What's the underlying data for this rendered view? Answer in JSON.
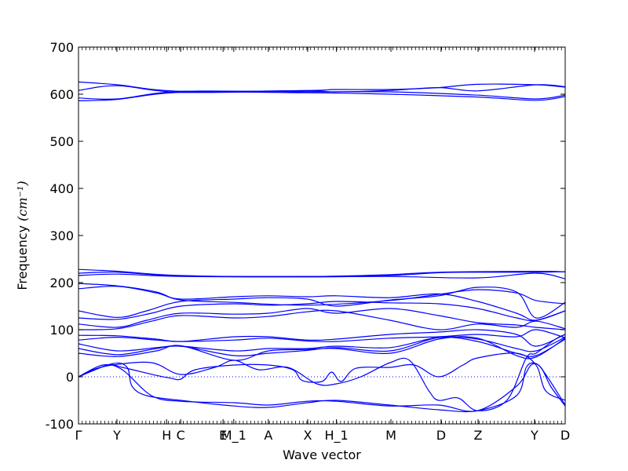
{
  "chart_data": {
    "type": "line",
    "xlabel": "Wave vector",
    "ylabel": "Frequency",
    "ylabel_unit": "(cm⁻¹)",
    "ylim": [
      -100,
      700
    ],
    "yticks": [
      -100,
      0,
      100,
      200,
      300,
      400,
      500,
      600,
      700
    ],
    "grid": false,
    "line_color": "#0000ff",
    "zero_line_color": "#0000ff",
    "x_points": [
      {
        "label": "Γ",
        "x": 0
      },
      {
        "label": "Y",
        "x": 0.79
      },
      {
        "label": "H",
        "x": 1.81
      },
      {
        "label": "C",
        "x": 2.1
      },
      {
        "label": "E",
        "x": 2.97
      },
      {
        "label": "M_1",
        "x": 3.19
      },
      {
        "label": "A",
        "x": 3.9
      },
      {
        "label": "X",
        "x": 4.71
      },
      {
        "label": "H_1",
        "x": 5.3
      },
      {
        "label": "M",
        "x": 6.42
      },
      {
        "label": "D",
        "x": 7.45
      },
      {
        "label": "Z",
        "x": 8.21
      },
      {
        "label": "Y",
        "x": 9.37
      },
      {
        "label": "D",
        "x": 10.0
      }
    ],
    "series": [
      {
        "values": [
          [
            0,
            586
          ],
          [
            0.8,
            589
          ],
          [
            2.1,
            604
          ],
          [
            4.7,
            603
          ],
          [
            6.4,
            600
          ],
          [
            8.2,
            594
          ],
          [
            9.4,
            587
          ],
          [
            10,
            595
          ]
        ]
      },
      {
        "values": [
          [
            0,
            592
          ],
          [
            0.8,
            590
          ],
          [
            2.1,
            606
          ],
          [
            4.7,
            605
          ],
          [
            6.4,
            605
          ],
          [
            8.2,
            598
          ],
          [
            9.4,
            590
          ],
          [
            10,
            598
          ]
        ]
      },
      {
        "values": [
          [
            0,
            608
          ],
          [
            0.8,
            618
          ],
          [
            2.1,
            604
          ],
          [
            4.7,
            607
          ],
          [
            5.3,
            605
          ],
          [
            6.4,
            608
          ],
          [
            7.4,
            614
          ],
          [
            8.2,
            607
          ],
          [
            9.4,
            620
          ],
          [
            10,
            616
          ]
        ]
      },
      {
        "values": [
          [
            0,
            626
          ],
          [
            0.8,
            620
          ],
          [
            2.1,
            606
          ],
          [
            4.7,
            608
          ],
          [
            5.3,
            610
          ],
          [
            6.4,
            610
          ],
          [
            7.4,
            614
          ],
          [
            8.2,
            621
          ],
          [
            9.4,
            620
          ],
          [
            10,
            615
          ]
        ]
      },
      {
        "values": [
          [
            0,
            215
          ],
          [
            0.8,
            218
          ],
          [
            2.1,
            213
          ],
          [
            4.7,
            212
          ],
          [
            6.4,
            213
          ],
          [
            8.2,
            210
          ],
          [
            9.4,
            220
          ],
          [
            10,
            208
          ]
        ]
      },
      {
        "values": [
          [
            0,
            220
          ],
          [
            0.8,
            222
          ],
          [
            2.1,
            214
          ],
          [
            4.7,
            213
          ],
          [
            6.4,
            215
          ],
          [
            7.4,
            221
          ],
          [
            8.2,
            222
          ],
          [
            9.4,
            222
          ],
          [
            10,
            223
          ]
        ]
      },
      {
        "values": [
          [
            0,
            228
          ],
          [
            0.8,
            224
          ],
          [
            2.1,
            215
          ],
          [
            4.7,
            213
          ],
          [
            6.4,
            217
          ],
          [
            7.4,
            222
          ],
          [
            9.4,
            224
          ],
          [
            10,
            223
          ]
        ]
      },
      {
        "values": [
          [
            0,
            198
          ],
          [
            0.8,
            193
          ],
          [
            1.6,
            180
          ],
          [
            2.1,
            163
          ],
          [
            3.2,
            158
          ],
          [
            4.7,
            152
          ],
          [
            6.4,
            162
          ],
          [
            7.4,
            175
          ],
          [
            8.2,
            185
          ],
          [
            9.0,
            178
          ],
          [
            9.4,
            162
          ],
          [
            10,
            155
          ]
        ]
      },
      {
        "values": [
          [
            0,
            187
          ],
          [
            0.8,
            192
          ],
          [
            1.6,
            178
          ],
          [
            2.1,
            165
          ],
          [
            3.2,
            170
          ],
          [
            3.9,
            172
          ],
          [
            4.7,
            170
          ],
          [
            5.3,
            172
          ],
          [
            6.4,
            168
          ],
          [
            7.4,
            176
          ],
          [
            8.2,
            160
          ],
          [
            9.0,
            135
          ],
          [
            9.4,
            120
          ],
          [
            10,
            140
          ]
        ]
      },
      {
        "values": [
          [
            0,
            140
          ],
          [
            0.8,
            126
          ],
          [
            1.4,
            140
          ],
          [
            2.1,
            160
          ],
          [
            3.2,
            165
          ],
          [
            3.9,
            168
          ],
          [
            4.7,
            165
          ],
          [
            5.3,
            150
          ],
          [
            6.4,
            163
          ],
          [
            7.4,
            172
          ],
          [
            8.2,
            190
          ],
          [
            9.0,
            180
          ],
          [
            9.4,
            125
          ],
          [
            10,
            158
          ]
        ]
      },
      {
        "values": [
          [
            0,
            125
          ],
          [
            0.8,
            122
          ],
          [
            1.5,
            135
          ],
          [
            2.1,
            150
          ],
          [
            3.2,
            155
          ],
          [
            3.9,
            152
          ],
          [
            4.7,
            155
          ],
          [
            5.3,
            160
          ],
          [
            6.4,
            157
          ],
          [
            7.4,
            155
          ],
          [
            8.2,
            145
          ],
          [
            9.0,
            125
          ],
          [
            9.4,
            120
          ],
          [
            10,
            140
          ]
        ]
      },
      {
        "values": [
          [
            0,
            112
          ],
          [
            0.8,
            105
          ],
          [
            1.4,
            120
          ],
          [
            2.1,
            135
          ],
          [
            3.2,
            133
          ],
          [
            3.9,
            135
          ],
          [
            4.7,
            145
          ],
          [
            5.3,
            135
          ],
          [
            6.4,
            145
          ],
          [
            7.4,
            130
          ],
          [
            8.2,
            115
          ],
          [
            9.0,
            110
          ],
          [
            9.4,
            105
          ],
          [
            10,
            100
          ]
        ]
      },
      {
        "values": [
          [
            0,
            100
          ],
          [
            0.8,
            102
          ],
          [
            1.5,
            118
          ],
          [
            2.1,
            130
          ],
          [
            3.2,
            125
          ],
          [
            3.9,
            128
          ],
          [
            4.7,
            138
          ],
          [
            5.3,
            140
          ],
          [
            6.4,
            120
          ],
          [
            7.4,
            100
          ],
          [
            8.2,
            112
          ],
          [
            9.0,
            105
          ],
          [
            9.4,
            118
          ],
          [
            10,
            102
          ]
        ]
      },
      {
        "values": [
          [
            0,
            88
          ],
          [
            0.8,
            87
          ],
          [
            1.6,
            80
          ],
          [
            2.1,
            75
          ],
          [
            3.2,
            85
          ],
          [
            3.9,
            85
          ],
          [
            4.7,
            78
          ],
          [
            5.3,
            80
          ],
          [
            6.4,
            90
          ],
          [
            7.4,
            95
          ],
          [
            8.2,
            100
          ],
          [
            9.0,
            90
          ],
          [
            9.4,
            65
          ],
          [
            10,
            90
          ]
        ]
      },
      {
        "values": [
          [
            0,
            78
          ],
          [
            0.8,
            84
          ],
          [
            1.6,
            78
          ],
          [
            2.1,
            75
          ],
          [
            3.2,
            78
          ],
          [
            3.9,
            82
          ],
          [
            4.7,
            76
          ],
          [
            5.3,
            75
          ],
          [
            6.4,
            82
          ],
          [
            7.4,
            85
          ],
          [
            8.2,
            90
          ],
          [
            9.0,
            85
          ],
          [
            9.4,
            100
          ],
          [
            10,
            83
          ]
        ]
      },
      {
        "values": [
          [
            0,
            70
          ],
          [
            0.8,
            55
          ],
          [
            1.6,
            62
          ],
          [
            2.1,
            65
          ],
          [
            3.2,
            55
          ],
          [
            3.9,
            60
          ],
          [
            4.7,
            60
          ],
          [
            5.3,
            65
          ],
          [
            6.4,
            62
          ],
          [
            7.4,
            84
          ],
          [
            8.2,
            80
          ],
          [
            9.0,
            60
          ],
          [
            9.4,
            55
          ],
          [
            10,
            84
          ]
        ]
      },
      {
        "values": [
          [
            0,
            60
          ],
          [
            0.8,
            47
          ],
          [
            1.6,
            60
          ],
          [
            2.1,
            65
          ],
          [
            3.2,
            45
          ],
          [
            3.9,
            50
          ],
          [
            4.7,
            56
          ],
          [
            5.3,
            62
          ],
          [
            6.4,
            55
          ],
          [
            7.4,
            83
          ],
          [
            8.2,
            75
          ],
          [
            9.0,
            50
          ],
          [
            9.4,
            45
          ],
          [
            10,
            80
          ]
        ]
      },
      {
        "values": [
          [
            0,
            50
          ],
          [
            0.8,
            43
          ],
          [
            1.6,
            55
          ],
          [
            2.1,
            66
          ],
          [
            3.2,
            35
          ],
          [
            3.9,
            55
          ],
          [
            4.7,
            58
          ],
          [
            5.3,
            60
          ],
          [
            6.4,
            50
          ],
          [
            7.4,
            80
          ],
          [
            8.2,
            82
          ],
          [
            9.0,
            45
          ],
          [
            9.4,
            42
          ],
          [
            10,
            82
          ]
        ]
      },
      {
        "values": [
          [
            0,
            0
          ],
          [
            0.6,
            25
          ],
          [
            0.9,
            20
          ],
          [
            1.6,
            3
          ],
          [
            1.9,
            -3
          ],
          [
            2.1,
            -5
          ],
          [
            2.4,
            15
          ],
          [
            3.2,
            25
          ],
          [
            3.9,
            25
          ],
          [
            4.4,
            15
          ],
          [
            4.6,
            -8
          ],
          [
            5.0,
            -10
          ],
          [
            5.2,
            10
          ],
          [
            5.4,
            -10
          ],
          [
            5.7,
            18
          ],
          [
            6.4,
            20
          ],
          [
            6.9,
            25
          ],
          [
            7.4,
            0
          ],
          [
            7.9,
            25
          ],
          [
            8.2,
            40
          ],
          [
            9.0,
            50
          ],
          [
            9.4,
            25
          ],
          [
            9.6,
            -30
          ],
          [
            10,
            -50
          ]
        ]
      },
      {
        "values": [
          [
            0,
            0
          ],
          [
            0.7,
            28
          ],
          [
            1.0,
            20
          ],
          [
            1.1,
            -20
          ],
          [
            1.4,
            -40
          ],
          [
            2.1,
            -50
          ],
          [
            3.2,
            -62
          ],
          [
            3.9,
            -65
          ],
          [
            4.7,
            -55
          ],
          [
            5.3,
            -50
          ],
          [
            6.4,
            -60
          ],
          [
            7.4,
            -70
          ],
          [
            8.2,
            -72
          ],
          [
            9.0,
            -40
          ],
          [
            9.2,
            20
          ],
          [
            9.4,
            28
          ],
          [
            9.6,
            5
          ],
          [
            10,
            -60
          ]
        ]
      },
      {
        "values": [
          [
            0,
            0
          ],
          [
            0.5,
            25
          ],
          [
            0.9,
            15
          ],
          [
            1.5,
            -40
          ],
          [
            2.1,
            -52
          ],
          [
            3.2,
            -55
          ],
          [
            3.9,
            -60
          ],
          [
            4.7,
            -52
          ],
          [
            5.3,
            -52
          ],
          [
            6.4,
            -62
          ],
          [
            7.4,
            -60
          ],
          [
            8.2,
            -72
          ],
          [
            9.0,
            -20
          ],
          [
            9.3,
            25
          ],
          [
            9.5,
            20
          ],
          [
            9.7,
            -20
          ],
          [
            10,
            -62
          ]
        ]
      },
      {
        "values": [
          [
            0,
            0
          ],
          [
            0.3,
            15
          ],
          [
            0.7,
            25
          ],
          [
            1.5,
            30
          ],
          [
            2.1,
            5
          ],
          [
            2.8,
            20
          ],
          [
            3.2,
            35
          ],
          [
            3.7,
            15
          ],
          [
            4.3,
            20
          ],
          [
            4.9,
            -15
          ],
          [
            5.3,
            -15
          ],
          [
            5.8,
            0
          ],
          [
            6.4,
            30
          ],
          [
            6.8,
            35
          ],
          [
            7.2,
            -30
          ],
          [
            7.4,
            -50
          ],
          [
            7.8,
            -45
          ],
          [
            8.2,
            -72
          ],
          [
            8.8,
            -50
          ],
          [
            9.2,
            40
          ],
          [
            9.4,
            50
          ],
          [
            9.8,
            80
          ],
          [
            10,
            90
          ]
        ]
      }
    ]
  }
}
